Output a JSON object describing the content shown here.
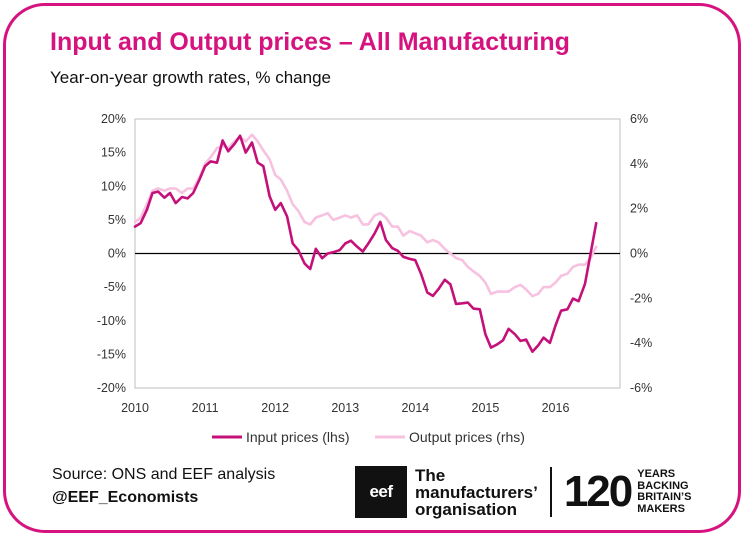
{
  "title": "Input and Output prices – All Manufacturing",
  "subtitle": "Year-on-year growth rates, % change",
  "footer": {
    "source": "Source: ONS and EEF analysis",
    "handle": "@EEF_Economists",
    "logo_box": "eef",
    "logo_org_lines": [
      "The",
      "manufacturers’",
      "organisation"
    ],
    "logo_number": "120",
    "logo_tagline_lines": [
      "YEARS",
      "BACKING",
      "BRITAIN’S",
      "MAKERS"
    ]
  },
  "colors": {
    "accent": "#d6127e",
    "input": "#c4117a",
    "output": "#f7c1e0"
  },
  "chart_data": {
    "type": "line",
    "title": "Input and Output prices – All Manufacturing",
    "xlabel": "",
    "ylabel_left": "%",
    "ylabel_right": "%",
    "xlim": [
      2010,
      2016.92
    ],
    "ylim_left": [
      -20,
      20
    ],
    "ylim_right": [
      -6,
      6
    ],
    "x_ticks": [
      "2010",
      "2011",
      "2012",
      "2013",
      "2014",
      "2015",
      "2016"
    ],
    "y_ticks_left": [
      "20%",
      "15%",
      "10%",
      "5%",
      "0%",
      "-5%",
      "-10%",
      "-15%",
      "-20%"
    ],
    "y_ticks_right": [
      "6%",
      "4%",
      "2%",
      "0%",
      "-2%",
      "-4%",
      "-6%"
    ],
    "legend": [
      "Input prices (lhs)",
      "Output prices (rhs)"
    ],
    "series": [
      {
        "name": "Input prices (lhs)",
        "axis": "left",
        "values": [
          [
            2010.0,
            4.0
          ],
          [
            2010.08,
            4.5
          ],
          [
            2010.17,
            6.5
          ],
          [
            2010.25,
            9.0
          ],
          [
            2010.33,
            9.2
          ],
          [
            2010.42,
            8.3
          ],
          [
            2010.5,
            9.0
          ],
          [
            2010.58,
            7.5
          ],
          [
            2010.67,
            8.4
          ],
          [
            2010.75,
            8.2
          ],
          [
            2010.83,
            9.0
          ],
          [
            2010.92,
            11.0
          ],
          [
            2011.0,
            13.0
          ],
          [
            2011.08,
            13.7
          ],
          [
            2011.17,
            13.5
          ],
          [
            2011.25,
            16.8
          ],
          [
            2011.33,
            15.2
          ],
          [
            2011.42,
            16.3
          ],
          [
            2011.5,
            17.5
          ],
          [
            2011.58,
            15.0
          ],
          [
            2011.67,
            16.5
          ],
          [
            2011.75,
            13.5
          ],
          [
            2011.83,
            13.0
          ],
          [
            2011.92,
            8.5
          ],
          [
            2012.0,
            6.5
          ],
          [
            2012.08,
            7.5
          ],
          [
            2012.17,
            5.5
          ],
          [
            2012.25,
            1.5
          ],
          [
            2012.33,
            0.5
          ],
          [
            2012.42,
            -1.5
          ],
          [
            2012.5,
            -2.3
          ],
          [
            2012.58,
            0.7
          ],
          [
            2012.67,
            -0.7
          ],
          [
            2012.75,
            0.0
          ],
          [
            2012.83,
            0.2
          ],
          [
            2012.92,
            0.5
          ],
          [
            2013.0,
            1.5
          ],
          [
            2013.08,
            1.9
          ],
          [
            2013.17,
            1.0
          ],
          [
            2013.25,
            0.3
          ],
          [
            2013.33,
            1.5
          ],
          [
            2013.42,
            3.0
          ],
          [
            2013.5,
            4.7
          ],
          [
            2013.58,
            2.0
          ],
          [
            2013.67,
            0.8
          ],
          [
            2013.75,
            0.4
          ],
          [
            2013.83,
            -0.5
          ],
          [
            2013.92,
            -0.8
          ],
          [
            2014.0,
            -1.0
          ],
          [
            2014.08,
            -3.0
          ],
          [
            2014.17,
            -5.8
          ],
          [
            2014.25,
            -6.3
          ],
          [
            2014.33,
            -5.3
          ],
          [
            2014.42,
            -3.9
          ],
          [
            2014.5,
            -4.6
          ],
          [
            2014.58,
            -7.5
          ],
          [
            2014.67,
            -7.4
          ],
          [
            2014.75,
            -7.3
          ],
          [
            2014.83,
            -8.2
          ],
          [
            2014.92,
            -8.3
          ],
          [
            2015.0,
            -12.0
          ],
          [
            2015.08,
            -14.0
          ],
          [
            2015.17,
            -13.5
          ],
          [
            2015.25,
            -12.9
          ],
          [
            2015.33,
            -11.2
          ],
          [
            2015.42,
            -12.0
          ],
          [
            2015.5,
            -13.0
          ],
          [
            2015.58,
            -12.8
          ],
          [
            2015.67,
            -14.6
          ],
          [
            2015.75,
            -13.7
          ],
          [
            2015.83,
            -12.5
          ],
          [
            2015.92,
            -13.3
          ],
          [
            2016.0,
            -10.7
          ],
          [
            2016.08,
            -8.5
          ],
          [
            2016.17,
            -8.3
          ],
          [
            2016.25,
            -6.7
          ],
          [
            2016.33,
            -7.1
          ],
          [
            2016.42,
            -4.5
          ],
          [
            2016.5,
            0.0
          ],
          [
            2016.58,
            4.5
          ]
        ]
      },
      {
        "name": "Output prices (rhs)",
        "axis": "right",
        "values": [
          [
            2010.0,
            1.4
          ],
          [
            2010.08,
            1.6
          ],
          [
            2010.17,
            2.2
          ],
          [
            2010.25,
            2.8
          ],
          [
            2010.33,
            2.9
          ],
          [
            2010.42,
            2.8
          ],
          [
            2010.5,
            2.9
          ],
          [
            2010.58,
            2.9
          ],
          [
            2010.67,
            2.7
          ],
          [
            2010.75,
            2.9
          ],
          [
            2010.83,
            2.9
          ],
          [
            2010.92,
            3.4
          ],
          [
            2011.0,
            4.0
          ],
          [
            2011.08,
            4.3
          ],
          [
            2011.17,
            4.7
          ],
          [
            2011.25,
            4.8
          ],
          [
            2011.33,
            4.7
          ],
          [
            2011.42,
            5.0
          ],
          [
            2011.5,
            5.2
          ],
          [
            2011.58,
            5.0
          ],
          [
            2011.67,
            5.3
          ],
          [
            2011.75,
            5.0
          ],
          [
            2011.83,
            4.6
          ],
          [
            2011.92,
            4.2
          ],
          [
            2012.0,
            3.5
          ],
          [
            2012.08,
            3.3
          ],
          [
            2012.17,
            2.8
          ],
          [
            2012.25,
            2.2
          ],
          [
            2012.33,
            1.9
          ],
          [
            2012.42,
            1.4
          ],
          [
            2012.5,
            1.3
          ],
          [
            2012.58,
            1.6
          ],
          [
            2012.67,
            1.7
          ],
          [
            2012.75,
            1.8
          ],
          [
            2012.83,
            1.5
          ],
          [
            2012.92,
            1.6
          ],
          [
            2013.0,
            1.7
          ],
          [
            2013.08,
            1.6
          ],
          [
            2013.17,
            1.7
          ],
          [
            2013.25,
            1.3
          ],
          [
            2013.33,
            1.3
          ],
          [
            2013.42,
            1.7
          ],
          [
            2013.5,
            1.8
          ],
          [
            2013.58,
            1.6
          ],
          [
            2013.67,
            1.2
          ],
          [
            2013.75,
            1.2
          ],
          [
            2013.83,
            0.8
          ],
          [
            2013.92,
            1.0
          ],
          [
            2014.0,
            0.9
          ],
          [
            2014.08,
            0.8
          ],
          [
            2014.17,
            0.5
          ],
          [
            2014.25,
            0.6
          ],
          [
            2014.33,
            0.5
          ],
          [
            2014.42,
            0.2
          ],
          [
            2014.5,
            0.0
          ],
          [
            2014.58,
            -0.2
          ],
          [
            2014.67,
            -0.3
          ],
          [
            2014.75,
            -0.6
          ],
          [
            2014.83,
            -0.8
          ],
          [
            2014.92,
            -1.0
          ],
          [
            2015.0,
            -1.3
          ],
          [
            2015.08,
            -1.8
          ],
          [
            2015.17,
            -1.7
          ],
          [
            2015.25,
            -1.7
          ],
          [
            2015.33,
            -1.7
          ],
          [
            2015.42,
            -1.5
          ],
          [
            2015.5,
            -1.4
          ],
          [
            2015.58,
            -1.6
          ],
          [
            2015.67,
            -1.9
          ],
          [
            2015.75,
            -1.8
          ],
          [
            2015.83,
            -1.5
          ],
          [
            2015.92,
            -1.5
          ],
          [
            2016.0,
            -1.3
          ],
          [
            2016.08,
            -1.0
          ],
          [
            2016.17,
            -0.9
          ],
          [
            2016.25,
            -0.6
          ],
          [
            2016.33,
            -0.5
          ],
          [
            2016.42,
            -0.5
          ],
          [
            2016.5,
            -0.2
          ],
          [
            2016.58,
            0.3
          ]
        ]
      }
    ]
  }
}
